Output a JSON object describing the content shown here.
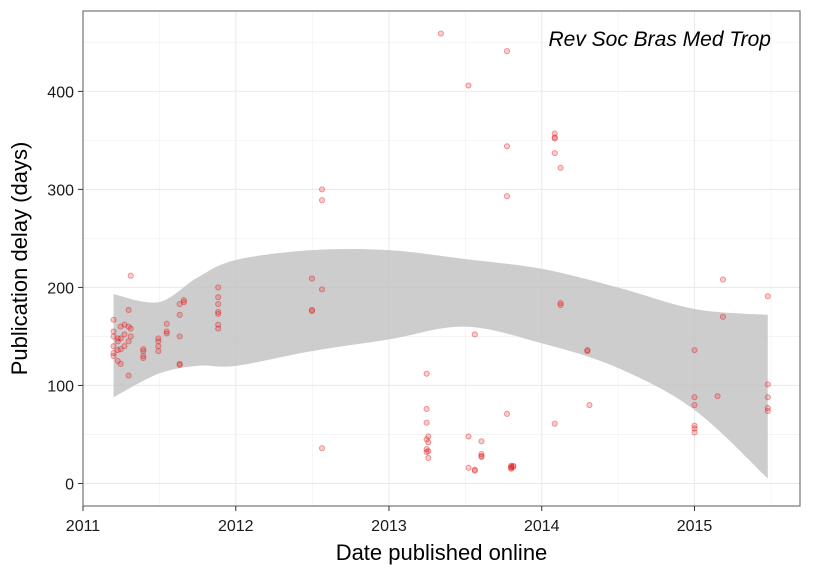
{
  "chart_data": {
    "type": "scatter",
    "title": "",
    "annotation": "Rev Soc Bras Med Trop",
    "xlabel": "Date published online",
    "ylabel": "Publication delay (days)",
    "xlim": [
      "2011-01-01",
      "2015-09-10"
    ],
    "ylim": [
      -23,
      482
    ],
    "x_ticks": [
      {
        "date": "2011-01-01",
        "label": "2011"
      },
      {
        "date": "2012-01-01",
        "label": "2012"
      },
      {
        "date": "2013-01-01",
        "label": "2013"
      },
      {
        "date": "2014-01-01",
        "label": "2014"
      },
      {
        "date": "2015-01-01",
        "label": "2015"
      }
    ],
    "y_ticks": [
      0,
      100,
      200,
      300,
      400
    ],
    "grid": true,
    "colors": {
      "points": "#e31a1c",
      "band": "#c0c0c0",
      "panel_border": "#7f7f7f",
      "grid": "#ebebeb"
    },
    "series": [
      {
        "values": [
          {
            "x": "2011-03-15",
            "y": 167
          },
          {
            "x": "2011-03-15",
            "y": 155
          },
          {
            "x": "2011-03-15",
            "y": 150
          },
          {
            "x": "2011-03-15",
            "y": 140
          },
          {
            "x": "2011-03-15",
            "y": 133
          },
          {
            "x": "2011-03-15",
            "y": 130
          },
          {
            "x": "2011-03-25",
            "y": 148
          },
          {
            "x": "2011-03-25",
            "y": 145
          },
          {
            "x": "2011-03-25",
            "y": 136
          },
          {
            "x": "2011-03-25",
            "y": 125
          },
          {
            "x": "2011-04-01",
            "y": 160
          },
          {
            "x": "2011-04-01",
            "y": 148
          },
          {
            "x": "2011-04-01",
            "y": 137
          },
          {
            "x": "2011-04-01",
            "y": 122
          },
          {
            "x": "2011-04-10",
            "y": 162
          },
          {
            "x": "2011-04-10",
            "y": 152
          },
          {
            "x": "2011-04-10",
            "y": 140
          },
          {
            "x": "2011-04-20",
            "y": 177
          },
          {
            "x": "2011-04-20",
            "y": 160
          },
          {
            "x": "2011-04-20",
            "y": 145
          },
          {
            "x": "2011-04-20",
            "y": 110
          },
          {
            "x": "2011-04-25",
            "y": 212
          },
          {
            "x": "2011-04-25",
            "y": 158
          },
          {
            "x": "2011-04-25",
            "y": 150
          },
          {
            "x": "2011-05-25",
            "y": 137
          },
          {
            "x": "2011-05-25",
            "y": 135
          },
          {
            "x": "2011-05-25",
            "y": 130
          },
          {
            "x": "2011-05-25",
            "y": 128
          },
          {
            "x": "2011-06-30",
            "y": 148
          },
          {
            "x": "2011-06-30",
            "y": 145
          },
          {
            "x": "2011-06-30",
            "y": 140
          },
          {
            "x": "2011-06-30",
            "y": 135
          },
          {
            "x": "2011-07-20",
            "y": 163
          },
          {
            "x": "2011-07-20",
            "y": 155
          },
          {
            "x": "2011-07-20",
            "y": 153
          },
          {
            "x": "2011-08-20",
            "y": 183
          },
          {
            "x": "2011-08-20",
            "y": 172
          },
          {
            "x": "2011-08-20",
            "y": 150
          },
          {
            "x": "2011-08-20",
            "y": 122
          },
          {
            "x": "2011-08-20",
            "y": 121
          },
          {
            "x": "2011-08-30",
            "y": 187
          },
          {
            "x": "2011-08-30",
            "y": 185
          },
          {
            "x": "2011-11-20",
            "y": 200
          },
          {
            "x": "2011-11-20",
            "y": 190
          },
          {
            "x": "2011-11-20",
            "y": 183
          },
          {
            "x": "2011-11-20",
            "y": 175
          },
          {
            "x": "2011-11-20",
            "y": 173
          },
          {
            "x": "2011-11-20",
            "y": 162
          },
          {
            "x": "2011-11-20",
            "y": 158
          },
          {
            "x": "2012-07-01",
            "y": 209
          },
          {
            "x": "2012-07-01",
            "y": 177
          },
          {
            "x": "2012-07-01",
            "y": 176
          },
          {
            "x": "2012-07-25",
            "y": 300
          },
          {
            "x": "2012-07-25",
            "y": 289
          },
          {
            "x": "2012-07-25",
            "y": 198
          },
          {
            "x": "2012-07-25",
            "y": 36
          },
          {
            "x": "2013-04-01",
            "y": 112
          },
          {
            "x": "2013-04-01",
            "y": 76
          },
          {
            "x": "2013-04-01",
            "y": 62
          },
          {
            "x": "2013-04-01",
            "y": 45
          },
          {
            "x": "2013-04-01",
            "y": 35
          },
          {
            "x": "2013-04-01",
            "y": 32
          },
          {
            "x": "2013-04-05",
            "y": 48
          },
          {
            "x": "2013-04-05",
            "y": 42
          },
          {
            "x": "2013-04-05",
            "y": 33
          },
          {
            "x": "2013-04-05",
            "y": 26
          },
          {
            "x": "2013-05-05",
            "y": 459
          },
          {
            "x": "2013-07-10",
            "y": 406
          },
          {
            "x": "2013-07-10",
            "y": 48
          },
          {
            "x": "2013-07-10",
            "y": 16
          },
          {
            "x": "2013-07-25",
            "y": 152
          },
          {
            "x": "2013-07-25",
            "y": 14
          },
          {
            "x": "2013-07-25",
            "y": 13
          },
          {
            "x": "2013-08-10",
            "y": 43
          },
          {
            "x": "2013-08-10",
            "y": 30
          },
          {
            "x": "2013-08-10",
            "y": 28
          },
          {
            "x": "2013-08-10",
            "y": 27
          },
          {
            "x": "2013-10-10",
            "y": 441
          },
          {
            "x": "2013-10-10",
            "y": 344
          },
          {
            "x": "2013-10-10",
            "y": 293
          },
          {
            "x": "2013-10-10",
            "y": 71
          },
          {
            "x": "2013-10-20",
            "y": 18
          },
          {
            "x": "2013-10-20",
            "y": 17
          },
          {
            "x": "2013-10-20",
            "y": 16
          },
          {
            "x": "2013-10-20",
            "y": 15
          },
          {
            "x": "2013-10-25",
            "y": 18
          },
          {
            "x": "2013-10-25",
            "y": 17
          },
          {
            "x": "2014-02-01",
            "y": 357
          },
          {
            "x": "2014-02-01",
            "y": 353
          },
          {
            "x": "2014-02-01",
            "y": 352
          },
          {
            "x": "2014-02-01",
            "y": 337
          },
          {
            "x": "2014-02-01",
            "y": 61
          },
          {
            "x": "2014-02-15",
            "y": 322
          },
          {
            "x": "2014-02-15",
            "y": 184
          },
          {
            "x": "2014-02-15",
            "y": 182
          },
          {
            "x": "2014-04-20",
            "y": 136
          },
          {
            "x": "2014-04-20",
            "y": 135
          },
          {
            "x": "2014-04-25",
            "y": 80
          },
          {
            "x": "2015-01-01",
            "y": 136
          },
          {
            "x": "2015-01-01",
            "y": 88
          },
          {
            "x": "2015-01-01",
            "y": 80
          },
          {
            "x": "2015-01-01",
            "y": 59
          },
          {
            "x": "2015-01-01",
            "y": 56
          },
          {
            "x": "2015-01-01",
            "y": 52
          },
          {
            "x": "2015-02-25",
            "y": 89
          },
          {
            "x": "2015-03-10",
            "y": 208
          },
          {
            "x": "2015-03-10",
            "y": 170
          },
          {
            "x": "2015-06-25",
            "y": 191
          },
          {
            "x": "2015-06-25",
            "y": 101
          },
          {
            "x": "2015-06-25",
            "y": 88
          },
          {
            "x": "2015-06-25",
            "y": 77
          },
          {
            "x": "2015-06-25",
            "y": 74
          }
        ]
      }
    ],
    "smooth_band": [
      {
        "x": "2011-03-15",
        "lower": 88,
        "upper": 193
      },
      {
        "x": "2011-07-01",
        "lower": 112,
        "upper": 185
      },
      {
        "x": "2011-10-01",
        "lower": 120,
        "upper": 210
      },
      {
        "x": "2012-01-01",
        "lower": 120,
        "upper": 228
      },
      {
        "x": "2012-07-01",
        "lower": 135,
        "upper": 238
      },
      {
        "x": "2013-01-01",
        "lower": 147,
        "upper": 238
      },
      {
        "x": "2013-07-01",
        "lower": 160,
        "upper": 229
      },
      {
        "x": "2014-01-01",
        "lower": 143,
        "upper": 219
      },
      {
        "x": "2014-07-01",
        "lower": 118,
        "upper": 200
      },
      {
        "x": "2015-01-01",
        "lower": 75,
        "upper": 178
      },
      {
        "x": "2015-06-25",
        "lower": 5,
        "upper": 172
      }
    ]
  }
}
